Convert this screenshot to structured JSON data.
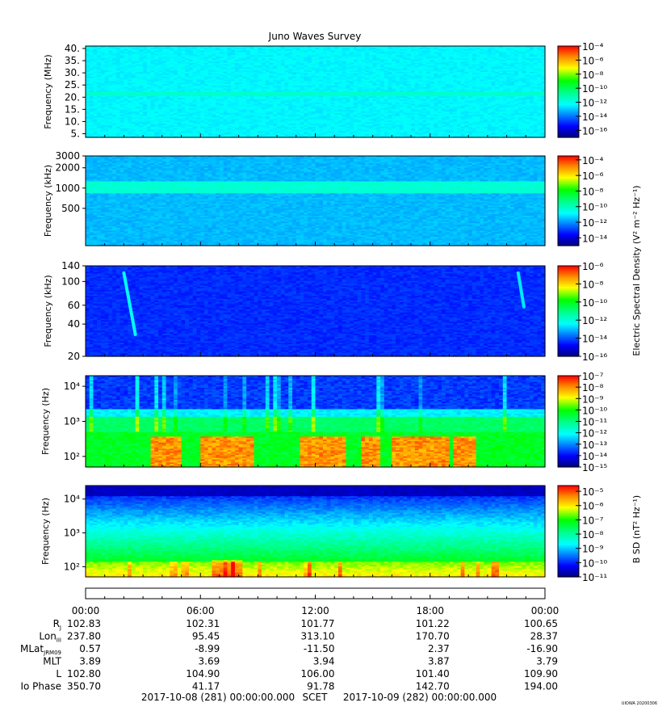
{
  "title": "Juno Waves Survey",
  "footer_mark": "UIOWA 20200306",
  "colorbar_labels": {
    "electric": "Electric Spectral Density (V² m⁻² Hz⁻¹)",
    "magnetic": "B SD (nT² Hz⁻¹)"
  },
  "chart_data": [
    {
      "type": "heatmap",
      "ylabel": "Frequency (MHz)",
      "yscale": "linear",
      "ylim": [
        3.5,
        41
      ],
      "yticks": [
        {
          "v": 40,
          "label": "40."
        },
        {
          "v": 35,
          "label": "35."
        },
        {
          "v": 30,
          "label": "30."
        },
        {
          "v": 25,
          "label": "25."
        },
        {
          "v": 20,
          "label": "20."
        },
        {
          "v": 15,
          "label": "15."
        },
        {
          "v": 10,
          "label": "10."
        },
        {
          "v": 5,
          "label": "5."
        }
      ],
      "colorbar": {
        "min_exp": -17,
        "max_exp": -4,
        "ticks": [
          {
            "exp": -4,
            "label": "10⁻⁴"
          },
          {
            "exp": -6,
            "label": "10⁻⁶"
          },
          {
            "exp": -8,
            "label": "10⁻⁸"
          },
          {
            "exp": -10,
            "label": "10⁻¹⁰"
          },
          {
            "exp": -12,
            "label": "10⁻¹²"
          },
          {
            "exp": -14,
            "label": "10⁻¹⁴"
          },
          {
            "exp": -16,
            "label": "10⁻¹⁶"
          }
        ]
      },
      "background_exp": -12.4,
      "features": [
        {
          "kind": "band",
          "center": 21.3,
          "width": 1.8,
          "exp": -11.6
        }
      ]
    },
    {
      "type": "heatmap",
      "ylabel": "Frequency (kHz)",
      "yscale": "log",
      "ylim": [
        140,
        3000
      ],
      "yticks": [
        {
          "v": 3000,
          "label": "3000"
        },
        {
          "v": 2000,
          "label": "2000"
        },
        {
          "v": 1000,
          "label": "1000"
        },
        {
          "v": 500,
          "label": "500"
        }
      ],
      "colorbar": {
        "min_exp": -15,
        "max_exp": -3.5,
        "ticks": [
          {
            "exp": -4,
            "label": "10⁻⁴"
          },
          {
            "exp": -6,
            "label": "10⁻⁶"
          },
          {
            "exp": -8,
            "label": "10⁻⁸"
          },
          {
            "exp": -10,
            "label": "10⁻¹⁰"
          },
          {
            "exp": -12,
            "label": "10⁻¹²"
          },
          {
            "exp": -14,
            "label": "10⁻¹⁴"
          }
        ]
      },
      "background_exp": -11.6,
      "features": [
        {
          "kind": "band",
          "center": 1050,
          "width": 400,
          "exp": -10.3
        }
      ]
    },
    {
      "type": "heatmap",
      "ylabel": "Frequency (kHz)",
      "yscale": "log",
      "ylim": [
        20,
        140
      ],
      "yticks": [
        {
          "v": 140,
          "label": "140"
        },
        {
          "v": 100,
          "label": "100"
        },
        {
          "v": 60,
          "label": "60"
        },
        {
          "v": 40,
          "label": "40"
        },
        {
          "v": 20,
          "label": "20"
        }
      ],
      "colorbar": {
        "min_exp": -16,
        "max_exp": -6,
        "ticks": [
          {
            "exp": -6,
            "label": "10⁻⁶"
          },
          {
            "exp": -8,
            "label": "10⁻⁸"
          },
          {
            "exp": -10,
            "label": "10⁻¹⁰"
          },
          {
            "exp": -12,
            "label": "10⁻¹²"
          },
          {
            "exp": -14,
            "label": "10⁻¹⁴"
          },
          {
            "exp": -16,
            "label": "10⁻¹⁶"
          }
        ]
      },
      "background_exp": -14.4,
      "features": [
        {
          "kind": "streak",
          "t0": 2.0,
          "f0": 120,
          "t1": 2.6,
          "f1": 32,
          "exp": -12.3
        },
        {
          "kind": "streak",
          "t0": 22.6,
          "f0": 120,
          "t1": 22.9,
          "f1": 58,
          "exp": -12.6
        }
      ]
    },
    {
      "type": "heatmap",
      "ylabel": "Frequency (Hz)",
      "yscale": "log",
      "ylim": [
        50,
        20000
      ],
      "yticks": [
        {
          "v": 10000,
          "label": "10⁴"
        },
        {
          "v": 1000,
          "label": "10³"
        },
        {
          "v": 100,
          "label": "10²"
        }
      ],
      "colorbar": {
        "min_exp": -15,
        "max_exp": -7,
        "ticks": [
          {
            "exp": -7,
            "label": "10⁻⁷"
          },
          {
            "exp": -8,
            "label": "10⁻⁸"
          },
          {
            "exp": -9,
            "label": "10⁻⁹"
          },
          {
            "exp": -10,
            "label": "10⁻¹⁰"
          },
          {
            "exp": -11,
            "label": "10⁻¹¹"
          },
          {
            "exp": -12,
            "label": "10⁻¹²"
          },
          {
            "exp": -13,
            "label": "10⁻¹³"
          },
          {
            "exp": -14,
            "label": "10⁻¹⁴"
          },
          {
            "exp": -15,
            "label": "10⁻¹⁵"
          }
        ]
      },
      "hot_intervals": [
        [
          3.4,
          4.9
        ],
        [
          6.0,
          8.8
        ],
        [
          11.2,
          13.6
        ],
        [
          14.5,
          15.3
        ],
        [
          15.9,
          18.9
        ],
        [
          19.3,
          20.4
        ]
      ]
    },
    {
      "type": "heatmap",
      "ylabel": "Frequency (Hz)",
      "yscale": "log",
      "ylim": [
        50,
        25000
      ],
      "yticks": [
        {
          "v": 10000,
          "label": "10⁴"
        },
        {
          "v": 1000,
          "label": "10³"
        },
        {
          "v": 100,
          "label": "10²"
        }
      ],
      "colorbar": {
        "min_exp": -11,
        "max_exp": -4.6,
        "ticks": [
          {
            "exp": -5,
            "label": "10⁻⁵"
          },
          {
            "exp": -6,
            "label": "10⁻⁶"
          },
          {
            "exp": -7,
            "label": "10⁻⁷"
          },
          {
            "exp": -8,
            "label": "10⁻⁸"
          },
          {
            "exp": -9,
            "label": "10⁻⁹"
          },
          {
            "exp": -10,
            "label": "10⁻¹⁰"
          },
          {
            "exp": -11,
            "label": "10⁻¹¹"
          }
        ]
      }
    }
  ],
  "time_axis": {
    "range_hours": [
      0,
      24
    ],
    "ticks": [
      {
        "h": 0,
        "label": "00:00"
      },
      {
        "h": 6,
        "label": "06:00"
      },
      {
        "h": 12,
        "label": "12:00"
      },
      {
        "h": 18,
        "label": "18:00"
      },
      {
        "h": 24,
        "label": "00:00"
      }
    ]
  },
  "ephemeris": [
    {
      "label": "R",
      "sub": "J",
      "values": [
        "102.83",
        "102.31",
        "101.77",
        "101.22",
        "100.65"
      ]
    },
    {
      "label": "Lon",
      "sub": "III",
      "values": [
        "237.80",
        "95.45",
        "313.10",
        "170.70",
        "28.37"
      ]
    },
    {
      "label": "MLat",
      "sub": "JRM09",
      "values": [
        "0.57",
        "-8.99",
        "-11.50",
        "2.37",
        "-16.90"
      ]
    },
    {
      "label": "MLT",
      "sub": "",
      "values": [
        "3.89",
        "3.69",
        "3.94",
        "3.87",
        "3.79"
      ]
    },
    {
      "label": "L",
      "sub": "",
      "values": [
        "102.80",
        "104.90",
        "106.00",
        "101.40",
        "109.90"
      ]
    },
    {
      "label": "Io Phase",
      "sub": "",
      "values": [
        "350.70",
        "41.17",
        "91.78",
        "142.70",
        "194.00"
      ]
    }
  ],
  "footer": {
    "start": "2017-10-08 (281) 00:00:00.000",
    "mid": "SCET",
    "end": "2017-10-09 (282) 00:00:00.000"
  }
}
